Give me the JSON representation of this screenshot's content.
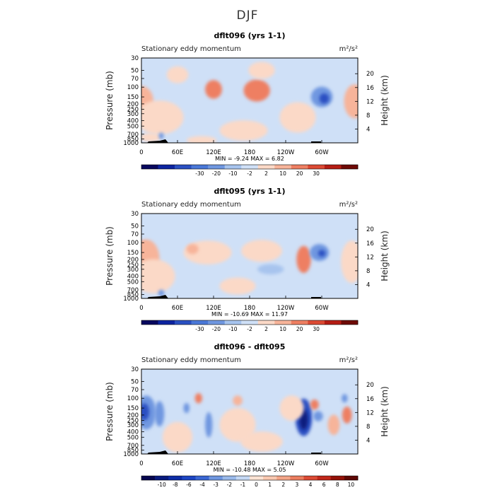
{
  "page": {
    "title": "DJF"
  },
  "colors": {
    "bg": "#cfe0f7",
    "warm1": "#fbd9c7",
    "warm2": "#f7b49a",
    "warm3": "#ee7f62",
    "cool1": "#a7c4ee",
    "cool2": "#6f97e0",
    "cool3": "#2a50c2",
    "cool4": "#081a7e"
  },
  "chart_data": [
    {
      "type": "heatmap",
      "title": "dflt096 (yrs 1-1)",
      "left_label": "Stationary eddy momentum",
      "units": "m²/s²",
      "ylabel": "Pressure (mb)",
      "ylabel_right": "Height (km)",
      "pressure_ticks": [
        "30",
        "50",
        "70",
        "100",
        "150",
        "200",
        "250",
        "300",
        "400",
        "500",
        "700",
        "850",
        "1000"
      ],
      "pressure_values": [
        30,
        50,
        70,
        100,
        150,
        200,
        250,
        300,
        400,
        500,
        700,
        850,
        1000
      ],
      "height_ticks": [
        "20",
        "16",
        "12",
        "8",
        "4"
      ],
      "height_values": [
        20,
        16,
        12,
        8,
        4
      ],
      "lon_ticks": [
        "0",
        "60E",
        "120E",
        "180",
        "120W",
        "60W"
      ],
      "lon_values": [
        0,
        60,
        120,
        180,
        240,
        300
      ],
      "stats": "MIN = -9.24   MAX = 6.82",
      "colorbar_labels": [
        "-30",
        "-20",
        "-10",
        "-2",
        "2",
        "10",
        "20",
        "30"
      ],
      "colorbar_colors": [
        "#08085e",
        "#0d24a0",
        "#2a50c2",
        "#4a78d8",
        "#6f97e0",
        "#a7c4ee",
        "#cfe0f7",
        "#fbd9c7",
        "#f7b49a",
        "#ee7f62",
        "#dc4a34",
        "#b51d14",
        "#6e0a06"
      ],
      "blobs": [
        {
          "lon": 0,
          "p": 180,
          "val": "warm2",
          "w": 20,
          "h": 0.18
        },
        {
          "lon": 355,
          "p": 180,
          "val": "warm2",
          "w": 18,
          "h": 0.2
        },
        {
          "lon": 120,
          "p": 110,
          "val": "warm3",
          "w": 14,
          "h": 0.11
        },
        {
          "lon": 192,
          "p": 115,
          "val": "warm3",
          "w": 22,
          "h": 0.13
        },
        {
          "lon": 300,
          "p": 150,
          "val": "cool2",
          "w": 18,
          "h": 0.12
        },
        {
          "lon": 304,
          "p": 160,
          "val": "cool3",
          "w": 8,
          "h": 0.06
        },
        {
          "lon": 30,
          "p": 350,
          "val": "warm1",
          "w": 40,
          "h": 0.2
        },
        {
          "lon": 170,
          "p": 600,
          "val": "warm1",
          "w": 40,
          "h": 0.12
        },
        {
          "lon": 260,
          "p": 350,
          "val": "warm1",
          "w": 30,
          "h": 0.18
        },
        {
          "lon": 60,
          "p": 60,
          "val": "warm1",
          "w": 18,
          "h": 0.1
        },
        {
          "lon": 200,
          "p": 50,
          "val": "warm1",
          "w": 22,
          "h": 0.1
        },
        {
          "lon": 15,
          "p": 800,
          "val": "warm1",
          "w": 18,
          "h": 0.05
        },
        {
          "lon": 33,
          "p": 750,
          "val": "cool2",
          "w": 4,
          "h": 0.04
        },
        {
          "lon": 100,
          "p": 900,
          "val": "warm1",
          "w": 25,
          "h": 0.05
        }
      ]
    },
    {
      "type": "heatmap",
      "title": "dflt095 (yrs 1-1)",
      "left_label": "Stationary eddy momentum",
      "units": "m²/s²",
      "ylabel": "Pressure (mb)",
      "ylabel_right": "Height (km)",
      "pressure_ticks": [
        "30",
        "50",
        "70",
        "100",
        "150",
        "200",
        "250",
        "300",
        "400",
        "500",
        "700",
        "850",
        "1000"
      ],
      "pressure_values": [
        30,
        50,
        70,
        100,
        150,
        200,
        250,
        300,
        400,
        500,
        700,
        850,
        1000
      ],
      "height_ticks": [
        "20",
        "16",
        "12",
        "8",
        "4"
      ],
      "height_values": [
        20,
        16,
        12,
        8,
        4
      ],
      "lon_ticks": [
        "0",
        "60E",
        "120E",
        "180",
        "120W",
        "60W"
      ],
      "lon_values": [
        0,
        60,
        120,
        180,
        240,
        300
      ],
      "stats": "MIN = -10.69   MAX = 11.97",
      "colorbar_labels": [
        "-30",
        "-20",
        "-10",
        "-2",
        "2",
        "10",
        "20",
        "30"
      ],
      "colorbar_colors": [
        "#08085e",
        "#0d24a0",
        "#2a50c2",
        "#4a78d8",
        "#6f97e0",
        "#a7c4ee",
        "#cfe0f7",
        "#fbd9c7",
        "#f7b49a",
        "#ee7f62",
        "#dc4a34",
        "#b51d14",
        "#6e0a06"
      ],
      "blobs": [
        {
          "lon": 4,
          "p": 180,
          "val": "warm3",
          "w": 16,
          "h": 0.18
        },
        {
          "lon": 8,
          "p": 190,
          "val": "warm2",
          "w": 22,
          "h": 0.22
        },
        {
          "lon": 350,
          "p": 220,
          "val": "warm1",
          "w": 18,
          "h": 0.25
        },
        {
          "lon": 270,
          "p": 200,
          "val": "warm3",
          "w": 12,
          "h": 0.16
        },
        {
          "lon": 296,
          "p": 150,
          "val": "cool2",
          "w": 16,
          "h": 0.1
        },
        {
          "lon": 300,
          "p": 155,
          "val": "cool3",
          "w": 6,
          "h": 0.04
        },
        {
          "lon": 200,
          "p": 140,
          "val": "warm1",
          "w": 34,
          "h": 0.13
        },
        {
          "lon": 215,
          "p": 300,
          "val": "cool1",
          "w": 22,
          "h": 0.06
        },
        {
          "lon": 20,
          "p": 400,
          "val": "warm1",
          "w": 36,
          "h": 0.2
        },
        {
          "lon": 110,
          "p": 150,
          "val": "warm1",
          "w": 40,
          "h": 0.14
        },
        {
          "lon": 85,
          "p": 130,
          "val": "warm2",
          "w": 10,
          "h": 0.06
        },
        {
          "lon": 160,
          "p": 600,
          "val": "warm1",
          "w": 30,
          "h": 0.1
        },
        {
          "lon": 33,
          "p": 800,
          "val": "cool2",
          "w": 5,
          "h": 0.04
        }
      ]
    },
    {
      "type": "heatmap",
      "title": "dflt096 - dflt095",
      "left_label": "Stationary eddy momentum",
      "units": "m²/s²",
      "ylabel": "Pressure (mb)",
      "ylabel_right": "Height (km)",
      "pressure_ticks": [
        "30",
        "50",
        "70",
        "100",
        "150",
        "200",
        "250",
        "300",
        "400",
        "500",
        "700",
        "850",
        "1000"
      ],
      "pressure_values": [
        30,
        50,
        70,
        100,
        150,
        200,
        250,
        300,
        400,
        500,
        700,
        850,
        1000
      ],
      "height_ticks": [
        "20",
        "16",
        "12",
        "8",
        "4"
      ],
      "height_values": [
        20,
        16,
        12,
        8,
        4
      ],
      "lon_ticks": [
        "0",
        "60E",
        "120E",
        "180",
        "120W",
        "60W"
      ],
      "lon_values": [
        0,
        60,
        120,
        180,
        240,
        300
      ],
      "stats": "MIN = -10.48   MAX = 5.05",
      "colorbar_labels": [
        "-10",
        "-8",
        "-6",
        "-4",
        "-3",
        "-2",
        "-1",
        "0",
        "1",
        "2",
        "3",
        "4",
        "6",
        "8",
        "10"
      ],
      "colorbar_colors": [
        "#06064f",
        "#081a7e",
        "#0d2ca6",
        "#1d45c3",
        "#3a66d3",
        "#6f97e0",
        "#9ab9ea",
        "#c4d8f4",
        "#fbe3d4",
        "#f9c8b0",
        "#f3a588",
        "#eb7d5f",
        "#dc4a34",
        "#c1271a",
        "#941108",
        "#5e0704"
      ],
      "blobs": [
        {
          "lon": 8,
          "p": 180,
          "val": "cool2",
          "w": 16,
          "h": 0.2
        },
        {
          "lon": 5,
          "p": 175,
          "val": "cool3",
          "w": 8,
          "h": 0.1
        },
        {
          "lon": 30,
          "p": 190,
          "val": "cool2",
          "w": 8,
          "h": 0.15
        },
        {
          "lon": 95,
          "p": 100,
          "val": "warm3",
          "w": 6,
          "h": 0.06
        },
        {
          "lon": 112,
          "p": 300,
          "val": "cool2",
          "w": 6,
          "h": 0.15
        },
        {
          "lon": 75,
          "p": 150,
          "val": "cool2",
          "w": 5,
          "h": 0.06
        },
        {
          "lon": 270,
          "p": 220,
          "val": "cool3",
          "w": 14,
          "h": 0.22
        },
        {
          "lon": 270,
          "p": 240,
          "val": "cool4",
          "w": 7,
          "h": 0.12
        },
        {
          "lon": 288,
          "p": 130,
          "val": "warm3",
          "w": 7,
          "h": 0.06
        },
        {
          "lon": 294,
          "p": 210,
          "val": "cool2",
          "w": 8,
          "h": 0.06
        },
        {
          "lon": 342,
          "p": 200,
          "val": "warm3",
          "w": 8,
          "h": 0.1
        },
        {
          "lon": 338,
          "p": 100,
          "val": "cool2",
          "w": 5,
          "h": 0.05
        },
        {
          "lon": 250,
          "p": 150,
          "val": "warm1",
          "w": 20,
          "h": 0.15
        },
        {
          "lon": 160,
          "p": 300,
          "val": "warm1",
          "w": 30,
          "h": 0.2
        },
        {
          "lon": 200,
          "p": 600,
          "val": "warm1",
          "w": 35,
          "h": 0.12
        },
        {
          "lon": 60,
          "p": 500,
          "val": "warm1",
          "w": 25,
          "h": 0.18
        },
        {
          "lon": 160,
          "p": 110,
          "val": "warm2",
          "w": 8,
          "h": 0.06
        },
        {
          "lon": 320,
          "p": 300,
          "val": "warm2",
          "w": 10,
          "h": 0.12
        }
      ]
    }
  ]
}
